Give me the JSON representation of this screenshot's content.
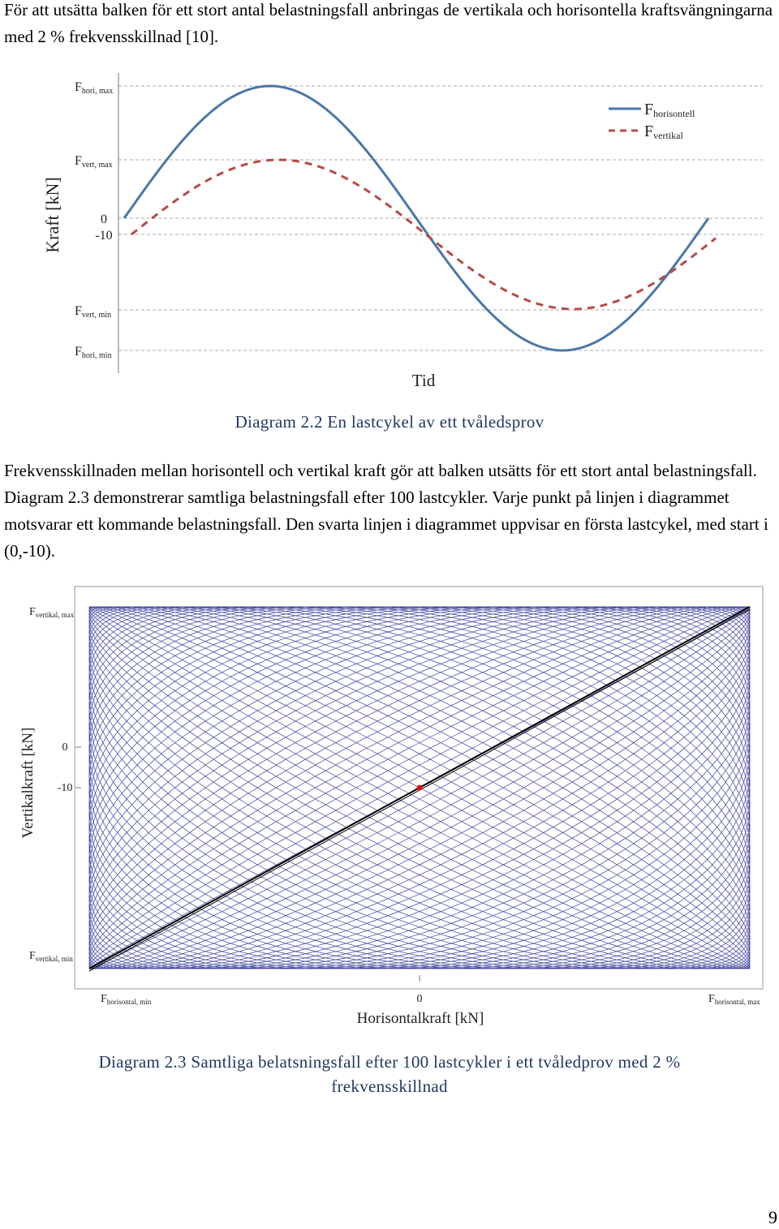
{
  "intro_text": "För att utsätta balken för ett stort antal belastningsfall anbringas de vertikala och horisontella kraftsvängningarna med 2 % frekvensskillnad [10].",
  "figure1": {
    "caption": "Diagram 2.2 En lastcykel av ett tvåledsprov",
    "ylabel": "Kraft [kN]",
    "xlabel": "Tid",
    "levels": [
      {
        "label_main": "F",
        "label_sub": "hori, max"
      },
      {
        "label_main": "F",
        "label_sub": "vert, max"
      },
      {
        "label_main": "0",
        "label_sub": ""
      },
      {
        "label_main": "-10",
        "label_sub": ""
      },
      {
        "label_main": "F",
        "label_sub": "vert, min"
      },
      {
        "label_main": "F",
        "label_sub": "hori, min"
      }
    ],
    "legend": [
      {
        "label_main": "F",
        "label_sub": "horisontell"
      },
      {
        "label_main": "F",
        "label_sub": "vertikal"
      }
    ]
  },
  "body_text": "Frekvensskillnaden mellan horisontell och vertikal kraft gör att balken utsätts för ett stort antal belastningsfall. Diagram 2.3 demonstrerar samtliga belastningsfall efter 100 lastcykler. Varje punkt på linjen i diagrammet motsvarar ett kommande belastningsfall. Den svarta linjen i diagrammet uppvisar en första lastcykel, med start i (0,-10).",
  "figure2": {
    "caption": "Diagram 2.3 Samtliga belatsningsfall efter 100 lastcykler i ett tvåledprov med 2 % frekvensskillnad",
    "ylabel": "Vertikalkraft [kN]",
    "xlabel": "Horisontalkraft [kN]",
    "y_levels": [
      {
        "label_main": "F",
        "label_sub": "vertikal, max"
      },
      {
        "label_main": "0",
        "label_sub": ""
      },
      {
        "label_main": "-10",
        "label_sub": ""
      },
      {
        "label_main": "F",
        "label_sub": "vertikal, min"
      }
    ],
    "x_levels": [
      {
        "label_main": "F",
        "label_sub": "horisontal, min"
      },
      {
        "label_main": "0",
        "label_sub": ""
      },
      {
        "label_main": "F",
        "label_sub": "horisontal, max"
      }
    ],
    "start_point": {
      "x": 0,
      "y": -10
    }
  },
  "page_number": "9",
  "colors": {
    "horisontell": "#4a78a8",
    "vertikal": "#b84a48",
    "lissajous": "#1a1f8c",
    "first_cycle": "#000000",
    "start_point": "#e01010",
    "caption": "#1f3864"
  },
  "chart_data": [
    {
      "type": "line",
      "title": "",
      "xlabel": "Tid",
      "ylabel": "Kraft [kN]",
      "series": [
        {
          "name": "F horisontell",
          "function": "sine",
          "amplitude": "F hori, max",
          "offset": 0,
          "start_value": 0,
          "cycles": 1
        },
        {
          "name": "F vertikal",
          "function": "sine",
          "amplitude": "F vert, max",
          "offset": -10,
          "start_value": -10,
          "cycles": 1
        }
      ],
      "y_reference_levels": [
        "F hori, max",
        "F vert, max",
        "0",
        "-10",
        "F vert, min",
        "F hori, min"
      ],
      "grid": "dashed horizontal reference lines",
      "legend": "top-right"
    },
    {
      "type": "line",
      "title": "",
      "xlabel": "Horisontalkraft [kN]",
      "ylabel": "Vertikalkraft [kN]",
      "series": [
        {
          "name": "first cycle",
          "x_range": [
            "F horisontal, min",
            "F horisontal, max"
          ],
          "y_range": [
            "F vertikal, min",
            "F vertikal, max"
          ]
        },
        {
          "name": "all cycles",
          "cycles": 100,
          "frequency_difference_percent": 2
        }
      ],
      "start_point": [
        0,
        -10
      ],
      "grid": false,
      "legend": "none"
    }
  ]
}
